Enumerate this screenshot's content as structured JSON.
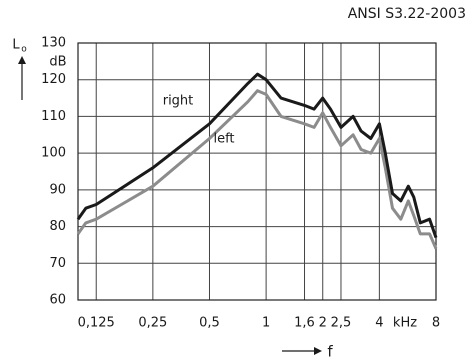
{
  "chart_data": {
    "type": "line",
    "title": "ANSI S3.22-2003",
    "ylabel": "L",
    "ylabel_sub": "o",
    "yunit": "dB",
    "xlabel": "f",
    "xunit": "kHz",
    "xscale": "log",
    "grid": true,
    "xlim": [
      0.1,
      8
    ],
    "xticks": [
      {
        "value": 0.125,
        "label": "0,125"
      },
      {
        "value": 0.25,
        "label": "0,25"
      },
      {
        "value": 0.5,
        "label": "0,5"
      },
      1,
      {
        "value": 1.6,
        "label": "1,6"
      },
      2,
      {
        "value": 2.5,
        "label": "2,5"
      },
      4,
      8
    ],
    "ylim": [
      60,
      130
    ],
    "yticks": [
      60,
      70,
      80,
      90,
      100,
      110,
      120,
      130
    ],
    "x": [
      0.1,
      0.11,
      0.125,
      0.25,
      0.5,
      0.8,
      0.9,
      1.0,
      1.2,
      1.6,
      1.8,
      2.0,
      2.2,
      2.5,
      2.9,
      3.2,
      3.6,
      4.0,
      4.3,
      4.7,
      5.2,
      5.7,
      6.1,
      6.6,
      7.4,
      8
    ],
    "series": [
      {
        "name": "right",
        "color": "#1a1a1a",
        "values": [
          82,
          85,
          86,
          96,
          108,
          119,
          121.5,
          120,
          115,
          113,
          112,
          115,
          112,
          107,
          110,
          106,
          104,
          108,
          100,
          89,
          87,
          91,
          88,
          81,
          82,
          77
        ]
      },
      {
        "name": "left",
        "color": "#8c8c8c",
        "values": [
          78,
          81,
          82,
          91,
          104,
          114,
          117,
          116,
          110,
          108,
          107,
          111,
          107,
          102,
          105,
          101,
          100,
          104,
          96,
          85,
          82,
          87,
          83,
          78,
          78,
          74
        ]
      }
    ]
  }
}
